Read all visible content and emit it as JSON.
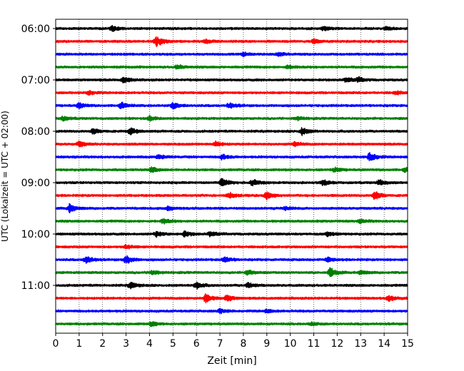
{
  "chart_data": {
    "type": "line",
    "title": "",
    "xlabel": "Zeit  [min]",
    "ylabel": "UTC (Lokalzeit = UTC + 02:00)",
    "xlim": [
      0,
      15
    ],
    "x_ticks": [
      0,
      1,
      2,
      3,
      4,
      5,
      6,
      7,
      8,
      9,
      10,
      11,
      12,
      13,
      14,
      15
    ],
    "x_tick_labels": [
      "0",
      "1",
      "2",
      "3",
      "4",
      "5",
      "6",
      "7",
      "8",
      "9",
      "10",
      "11",
      "12",
      "13",
      "14",
      "15"
    ],
    "x_grid": "dotted vertical lines at each minute",
    "y_tick_labels": [
      "06:00",
      "07:00",
      "08:00",
      "09:00",
      "10:00",
      "11:00"
    ],
    "traces_per_hour": 4,
    "trace_minutes_each": 15,
    "trace_color_cycle": [
      "#000000",
      "#ff0000",
      "#0000ff",
      "#008000"
    ],
    "traces": [
      {
        "start": "06:00",
        "color": "#000000",
        "events": [
          {
            "t": 2.4,
            "amp": 0.5
          },
          {
            "t": 11.4,
            "amp": 0.4
          },
          {
            "t": 14.1,
            "amp": 0.3
          }
        ]
      },
      {
        "start": "06:15",
        "color": "#ff0000",
        "events": [
          {
            "t": 4.3,
            "amp": 1.0
          },
          {
            "t": 6.4,
            "amp": 0.3
          },
          {
            "t": 11.0,
            "amp": 0.4
          }
        ]
      },
      {
        "start": "06:30",
        "color": "#0000ff",
        "events": [
          {
            "t": 8.0,
            "amp": 0.3
          },
          {
            "t": 9.5,
            "amp": 0.3
          }
        ]
      },
      {
        "start": "06:45",
        "color": "#008000",
        "events": [
          {
            "t": 5.2,
            "amp": 0.4
          },
          {
            "t": 9.9,
            "amp": 0.3
          }
        ]
      },
      {
        "start": "07:00",
        "color": "#000000",
        "events": [
          {
            "t": 2.9,
            "amp": 0.5
          },
          {
            "t": 12.4,
            "amp": 0.5
          },
          {
            "t": 12.9,
            "amp": 0.4
          }
        ]
      },
      {
        "start": "07:15",
        "color": "#ff0000",
        "events": [
          {
            "t": 1.4,
            "amp": 0.4
          },
          {
            "t": 14.5,
            "amp": 0.3
          }
        ]
      },
      {
        "start": "07:30",
        "color": "#0000ff",
        "events": [
          {
            "t": 1.0,
            "amp": 0.5
          },
          {
            "t": 2.8,
            "amp": 0.6
          },
          {
            "t": 5.0,
            "amp": 0.6
          },
          {
            "t": 7.4,
            "amp": 0.5
          }
        ]
      },
      {
        "start": "07:45",
        "color": "#008000",
        "events": [
          {
            "t": 0.3,
            "amp": 0.4
          },
          {
            "t": 4.0,
            "amp": 0.4
          },
          {
            "t": 10.3,
            "amp": 0.3
          }
        ]
      },
      {
        "start": "08:00",
        "color": "#000000",
        "events": [
          {
            "t": 1.6,
            "amp": 0.5
          },
          {
            "t": 3.2,
            "amp": 0.6
          },
          {
            "t": 10.5,
            "amp": 0.7
          }
        ]
      },
      {
        "start": "08:15",
        "color": "#ff0000",
        "events": [
          {
            "t": 1.0,
            "amp": 0.5
          },
          {
            "t": 6.8,
            "amp": 0.5
          },
          {
            "t": 10.2,
            "amp": 0.4
          }
        ]
      },
      {
        "start": "08:30",
        "color": "#0000ff",
        "events": [
          {
            "t": 4.4,
            "amp": 0.4
          },
          {
            "t": 7.1,
            "amp": 0.5
          },
          {
            "t": 13.4,
            "amp": 0.9
          }
        ]
      },
      {
        "start": "08:45",
        "color": "#008000",
        "events": [
          {
            "t": 4.1,
            "amp": 0.5
          },
          {
            "t": 11.9,
            "amp": 0.4
          },
          {
            "t": 14.9,
            "amp": 0.4
          }
        ]
      },
      {
        "start": "09:00",
        "color": "#000000",
        "events": [
          {
            "t": 7.1,
            "amp": 0.8
          },
          {
            "t": 8.4,
            "amp": 0.6
          },
          {
            "t": 11.4,
            "amp": 0.5
          },
          {
            "t": 13.8,
            "amp": 0.5
          }
        ]
      },
      {
        "start": "09:15",
        "color": "#ff0000",
        "events": [
          {
            "t": 7.4,
            "amp": 0.5
          },
          {
            "t": 9.0,
            "amp": 0.7
          },
          {
            "t": 13.6,
            "amp": 0.8
          }
        ]
      },
      {
        "start": "09:30",
        "color": "#0000ff",
        "events": [
          {
            "t": 0.6,
            "amp": 0.8
          },
          {
            "t": 4.8,
            "amp": 0.4
          },
          {
            "t": 9.8,
            "amp": 0.3
          }
        ]
      },
      {
        "start": "09:45",
        "color": "#008000",
        "events": [
          {
            "t": 4.6,
            "amp": 0.5
          },
          {
            "t": 13.0,
            "amp": 0.3
          }
        ]
      },
      {
        "start": "10:00",
        "color": "#000000",
        "events": [
          {
            "t": 4.3,
            "amp": 0.5
          },
          {
            "t": 5.5,
            "amp": 0.5
          },
          {
            "t": 6.6,
            "amp": 0.5
          },
          {
            "t": 11.6,
            "amp": 0.4
          }
        ]
      },
      {
        "start": "10:15",
        "color": "#ff0000",
        "events": [
          {
            "t": 3.0,
            "amp": 0.4
          }
        ]
      },
      {
        "start": "10:30",
        "color": "#0000ff",
        "events": [
          {
            "t": 1.3,
            "amp": 0.7
          },
          {
            "t": 3.0,
            "amp": 0.8
          },
          {
            "t": 7.2,
            "amp": 0.5
          },
          {
            "t": 11.6,
            "amp": 0.4
          }
        ]
      },
      {
        "start": "10:45",
        "color": "#008000",
        "events": [
          {
            "t": 4.1,
            "amp": 0.4
          },
          {
            "t": 8.2,
            "amp": 0.5
          },
          {
            "t": 11.7,
            "amp": 0.9
          },
          {
            "t": 13.0,
            "amp": 0.4
          }
        ]
      },
      {
        "start": "11:00",
        "color": "#000000",
        "events": [
          {
            "t": 3.2,
            "amp": 0.6
          },
          {
            "t": 6.0,
            "amp": 0.6
          },
          {
            "t": 8.2,
            "amp": 0.5
          }
        ]
      },
      {
        "start": "11:15",
        "color": "#ff0000",
        "events": [
          {
            "t": 6.4,
            "amp": 0.8
          },
          {
            "t": 7.3,
            "amp": 0.6
          },
          {
            "t": 14.2,
            "amp": 0.5
          }
        ]
      },
      {
        "start": "11:30",
        "color": "#0000ff",
        "events": [
          {
            "t": 7.0,
            "amp": 0.4
          },
          {
            "t": 9.0,
            "amp": 0.3
          }
        ]
      },
      {
        "start": "11:45",
        "color": "#008000",
        "events": [
          {
            "t": 4.1,
            "amp": 0.4
          },
          {
            "t": 10.9,
            "amp": 0.3
          }
        ]
      }
    ]
  }
}
